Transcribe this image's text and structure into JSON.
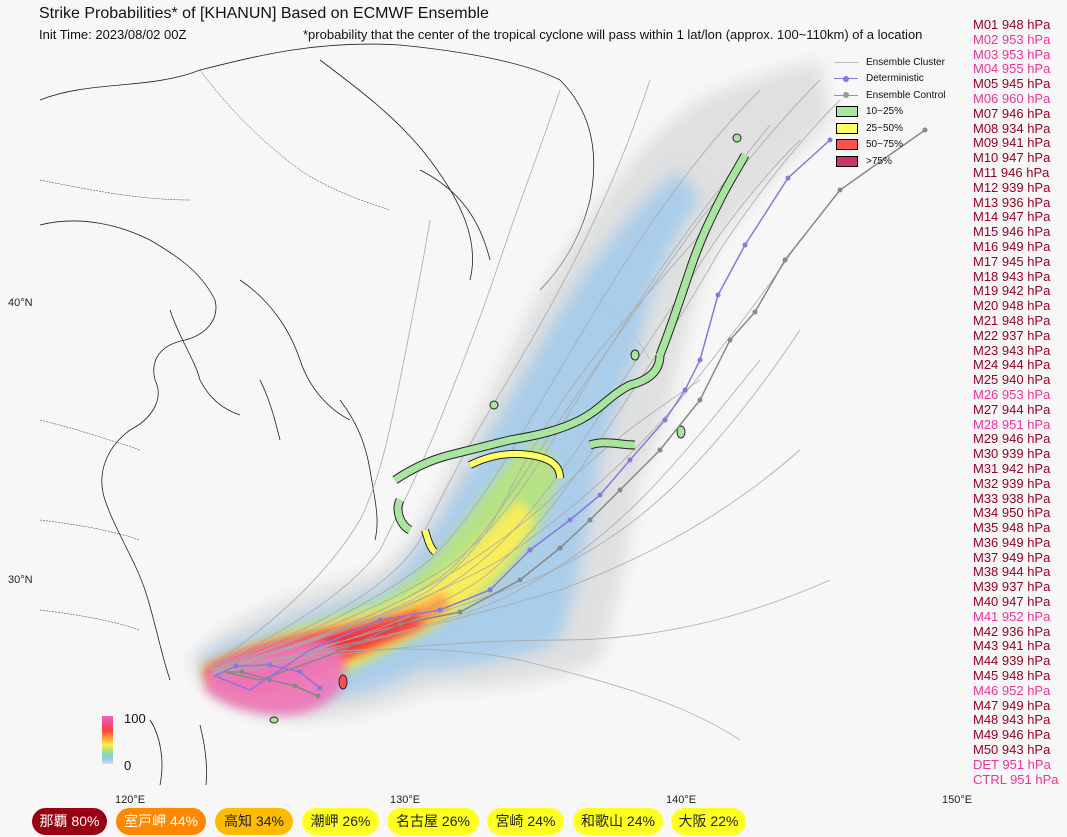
{
  "title": "Strike Probabilities* of [KHANUN] Based on ECMWF Ensemble",
  "init_time": "Init Time: 2023/08/02 00Z",
  "footnote": "*probability that the center of the tropical cyclone will pass within 1 lat/lon (approx. 100~110km) of a location",
  "axes": {
    "lat_labels": [
      "40°N",
      "30°N"
    ],
    "lon_labels": [
      "120°E",
      "130°E",
      "140°E",
      "150°E"
    ]
  },
  "legend": {
    "ensemble_cluster": "Ensemble Cluster",
    "deterministic": "Deterministic",
    "ensemble_control": "Ensemble Control",
    "bins": [
      {
        "label": "10~25%",
        "color": "#a8e6a0"
      },
      {
        "label": "25~50%",
        "color": "#ffff66"
      },
      {
        "label": "50~75%",
        "color": "#ff5050"
      },
      {
        "label": ">75%",
        "color": "#cc3366"
      }
    ]
  },
  "colorbar": {
    "max": "100",
    "min": "0"
  },
  "members": [
    {
      "label": "M01 948 hPa",
      "color": "#990022"
    },
    {
      "label": "M02 953 hPa",
      "color": "#ee3399"
    },
    {
      "label": "M03 953 hPa",
      "color": "#ee3399"
    },
    {
      "label": "M04 955 hPa",
      "color": "#ee3399"
    },
    {
      "label": "M05 945 hPa",
      "color": "#990022"
    },
    {
      "label": "M06 960 hPa",
      "color": "#ee3399"
    },
    {
      "label": "M07 946 hPa",
      "color": "#990022"
    },
    {
      "label": "M08 934 hPa",
      "color": "#990022"
    },
    {
      "label": "M09 941 hPa",
      "color": "#990022"
    },
    {
      "label": "M10 947 hPa",
      "color": "#990022"
    },
    {
      "label": "M11 946 hPa",
      "color": "#990022"
    },
    {
      "label": "M12 939 hPa",
      "color": "#990022"
    },
    {
      "label": "M13 936 hPa",
      "color": "#990022"
    },
    {
      "label": "M14 947 hPa",
      "color": "#990022"
    },
    {
      "label": "M15 946 hPa",
      "color": "#990022"
    },
    {
      "label": "M16 949 hPa",
      "color": "#990022"
    },
    {
      "label": "M17 945 hPa",
      "color": "#990022"
    },
    {
      "label": "M18 943 hPa",
      "color": "#990022"
    },
    {
      "label": "M19 942 hPa",
      "color": "#990022"
    },
    {
      "label": "M20 948 hPa",
      "color": "#990022"
    },
    {
      "label": "M21 948 hPa",
      "color": "#990022"
    },
    {
      "label": "M22 937 hPa",
      "color": "#990022"
    },
    {
      "label": "M23 943 hPa",
      "color": "#990022"
    },
    {
      "label": "M24 944 hPa",
      "color": "#990022"
    },
    {
      "label": "M25 940 hPa",
      "color": "#990022"
    },
    {
      "label": "M26 953 hPa",
      "color": "#ee3399"
    },
    {
      "label": "M27 944 hPa",
      "color": "#990022"
    },
    {
      "label": "M28 951 hPa",
      "color": "#ee3399"
    },
    {
      "label": "M29 946 hPa",
      "color": "#990022"
    },
    {
      "label": "M30 939 hPa",
      "color": "#990022"
    },
    {
      "label": "M31 942 hPa",
      "color": "#990022"
    },
    {
      "label": "M32 939 hPa",
      "color": "#990022"
    },
    {
      "label": "M33 938 hPa",
      "color": "#990022"
    },
    {
      "label": "M34 950 hPa",
      "color": "#990022"
    },
    {
      "label": "M35 948 hPa",
      "color": "#990022"
    },
    {
      "label": "M36 949 hPa",
      "color": "#990022"
    },
    {
      "label": "M37 949 hPa",
      "color": "#990022"
    },
    {
      "label": "M38 944 hPa",
      "color": "#990022"
    },
    {
      "label": "M39 937 hPa",
      "color": "#990022"
    },
    {
      "label": "M40 947 hPa",
      "color": "#990022"
    },
    {
      "label": "M41 952 hPa",
      "color": "#ee3399"
    },
    {
      "label": "M42 936 hPa",
      "color": "#990022"
    },
    {
      "label": "M43 941 hPa",
      "color": "#990022"
    },
    {
      "label": "M44 939 hPa",
      "color": "#990022"
    },
    {
      "label": "M45 948 hPa",
      "color": "#990022"
    },
    {
      "label": "M46 952 hPa",
      "color": "#ee3399"
    },
    {
      "label": "M47 949 hPa",
      "color": "#990022"
    },
    {
      "label": "M48 943 hPa",
      "color": "#990022"
    },
    {
      "label": "M49 946 hPa",
      "color": "#990022"
    },
    {
      "label": "M50 943 hPa",
      "color": "#990022"
    },
    {
      "label": "DET 951 hPa",
      "color": "#ee3399"
    },
    {
      "label": "CTRL 951 hPa",
      "color": "#ee3399"
    }
  ],
  "locations": [
    {
      "label": "那覇  80%",
      "color": "#990011",
      "text_color": "#ffffff"
    },
    {
      "label": "室戸岬  44%",
      "color": "#ff8800",
      "text_color": "#ffffff"
    },
    {
      "label": "高知  34%",
      "color": "#ffbb00",
      "text_color": "#222222"
    },
    {
      "label": "潮岬  26%",
      "color": "#ffff22",
      "text_color": "#222222"
    },
    {
      "label": "名古屋  26%",
      "color": "#ffff22",
      "text_color": "#222222"
    },
    {
      "label": "宮崎  24%",
      "color": "#ffff22",
      "text_color": "#222222"
    },
    {
      "label": "和歌山  24%",
      "color": "#ffff22",
      "text_color": "#222222"
    },
    {
      "label": "大阪  22%",
      "color": "#ffff22",
      "text_color": "#222222"
    }
  ]
}
